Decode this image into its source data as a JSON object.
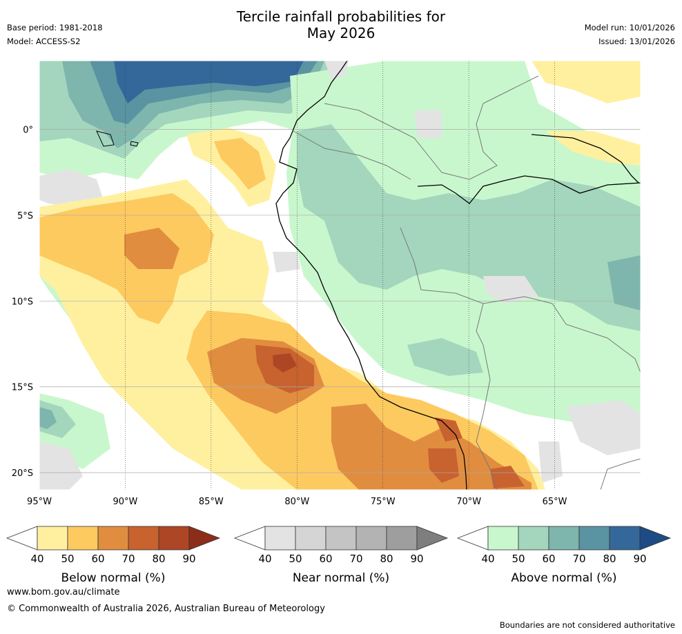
{
  "header": {
    "title_line1": "Tercile rainfall probabilities for",
    "title_line2": "May 2026",
    "base_period": "Base period: 1981-2018",
    "model": "Model: ACCESS-S2",
    "model_run": "Model run: 10/01/2026",
    "issued": "Issued: 13/01/2026"
  },
  "map": {
    "lon_labels": [
      "95°W",
      "90°W",
      "85°W",
      "80°W",
      "75°W",
      "70°W",
      "65°W"
    ],
    "lat_labels": [
      "0°",
      "5°S",
      "10°S",
      "15°S",
      "20°S"
    ],
    "lon_range": [
      -95,
      -60
    ],
    "lat_range": [
      -21,
      4
    ]
  },
  "colorbars": [
    {
      "title": "Below normal (%)",
      "ticks": [
        "40",
        "50",
        "60",
        "70",
        "80",
        "90"
      ],
      "colors": [
        "#fff0a0",
        "#fdca60",
        "#e18d40",
        "#c8622f",
        "#ad4625",
        "#8c2d1a"
      ]
    },
    {
      "title": "Near normal (%)",
      "ticks": [
        "40",
        "50",
        "60",
        "70",
        "80",
        "90"
      ],
      "colors": [
        "#e3e3e3",
        "#d5d5d5",
        "#c4c4c4",
        "#b3b3b3",
        "#9e9e9e",
        "#7e7e7e"
      ]
    },
    {
      "title": "Above normal (%)",
      "ticks": [
        "40",
        "50",
        "60",
        "70",
        "80",
        "90"
      ],
      "colors": [
        "#c9f7cd",
        "#a3d6bc",
        "#7eb5ad",
        "#5a93a2",
        "#34689a",
        "#1d4b84"
      ]
    }
  ],
  "footer": {
    "website": "www.bom.gov.au/climate",
    "copyright": "© Commonwealth of Australia 2026, Australian Bureau of Meteorology",
    "disclaimer": "Boundaries are not considered authoritative"
  }
}
